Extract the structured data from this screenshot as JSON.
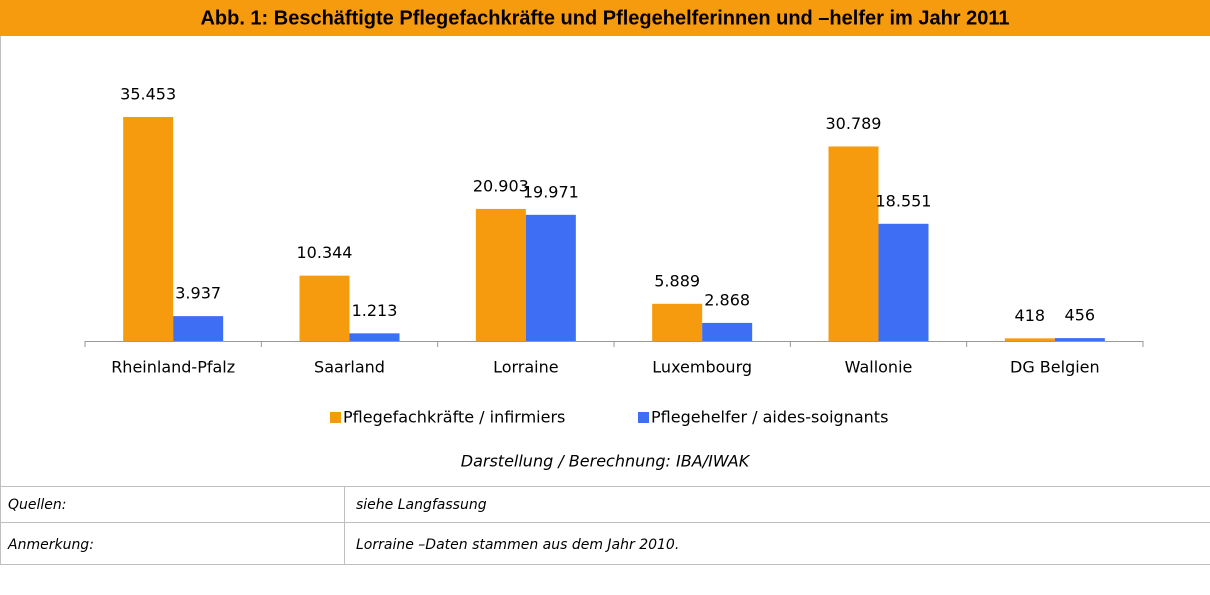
{
  "chart_data": {
    "type": "bar",
    "title": "Abb. 1: Beschäftigte Pflegefachkräfte und Pflegehelferinnen und –helfer im Jahr 2011",
    "categories": [
      "Rheinland-Pfalz",
      "Saarland",
      "Lorraine",
      "Luxembourg",
      "Wallonie",
      "DG Belgien"
    ],
    "series": [
      {
        "name": "Pflegefachkräfte / infirmiers",
        "color": "#f79b0e",
        "values": [
          35453,
          10344,
          20903,
          5889,
          30789,
          418
        ],
        "value_labels": [
          "35.453",
          "10.344",
          "20.903",
          "5.889",
          "30.789",
          "418"
        ]
      },
      {
        "name": "Pflegehelfer / aides-soignants",
        "color": "#3d6ef3",
        "values": [
          3937,
          1213,
          19971,
          2868,
          18551,
          456
        ],
        "value_labels": [
          "3.937",
          "1.213",
          "19.971",
          "2.868",
          "18.551",
          "456"
        ]
      }
    ],
    "source_note": "Darstellung / Berechnung: IBA/IWAK"
  },
  "table": {
    "rows": [
      [
        "Quellen:",
        "siehe Langfassung"
      ],
      [
        "Anmerkung:",
        "Lorraine –Daten stammen aus dem Jahr 2010."
      ]
    ]
  }
}
